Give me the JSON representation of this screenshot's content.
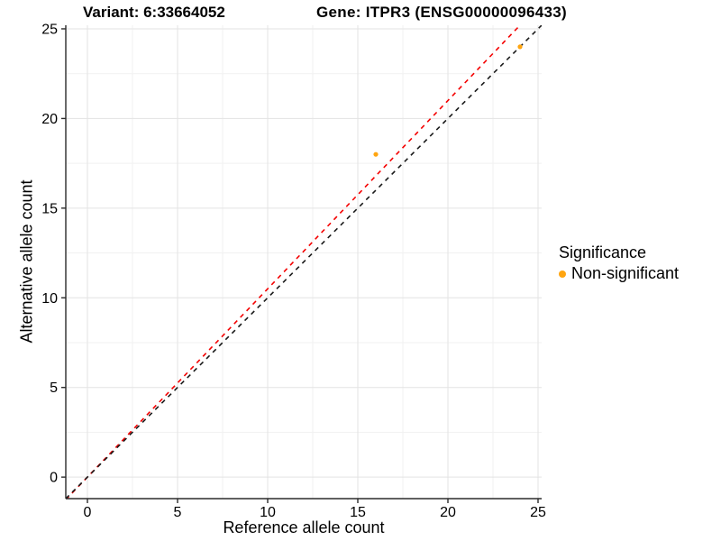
{
  "page": {
    "background": "#ffffff"
  },
  "titles": {
    "variant": "Variant: 6:33664052",
    "gene": "Gene: ITPR3 (ENSG00000096433)"
  },
  "chart_data": {
    "type": "scatter",
    "title": "Variant: 6:33664052  Gene: ITPR3 (ENSG00000096433)",
    "xlabel": "Reference allele count",
    "ylabel": "Alternative allele count",
    "xlim": [
      -1.2,
      25.2
    ],
    "ylim": [
      -1.2,
      25.2
    ],
    "xticks": [
      0,
      5,
      10,
      15,
      20,
      25
    ],
    "yticks": [
      0,
      5,
      10,
      15,
      20,
      25
    ],
    "xminor": [
      2.5,
      7.5,
      12.5,
      17.5,
      22.5
    ],
    "yminor": [
      2.5,
      7.5,
      12.5,
      17.5,
      22.5
    ],
    "grid": true,
    "series": [
      {
        "name": "Non-significant",
        "color": "#ffa510",
        "points": [
          {
            "x": 16,
            "y": 18
          },
          {
            "x": 24,
            "y": 24
          }
        ]
      }
    ],
    "ablines": [
      {
        "name": "fitted-ratio-line",
        "slope": 1.05,
        "intercept": 0,
        "color": "#f40000",
        "dash": [
          5,
          5
        ]
      },
      {
        "name": "identity-line",
        "slope": 1.0,
        "intercept": 0,
        "color": "#1a1a1a",
        "dash": [
          5,
          5
        ]
      }
    ],
    "legend": {
      "position": "right",
      "title": "Significance",
      "items": [
        {
          "label": "Non-significant",
          "color": "#ffa510"
        }
      ]
    },
    "colors": {
      "axis": "#2b2b2b",
      "tick_text": "#000000",
      "grid_major": "#e3e3e3",
      "grid_minor": "#f1f1f1",
      "background": "#ffffff"
    }
  }
}
